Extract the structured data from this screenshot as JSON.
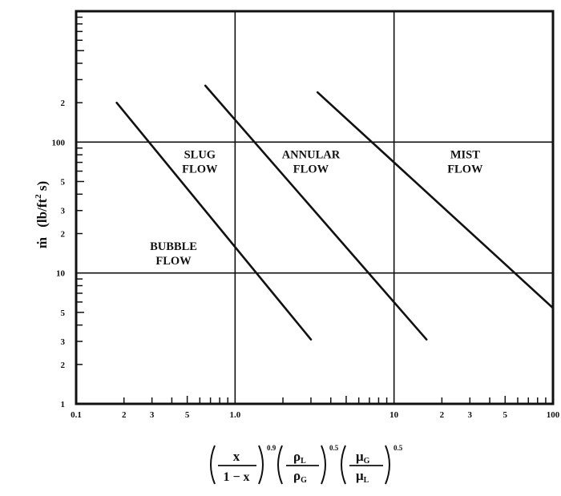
{
  "chart_data": {
    "type": "line",
    "xscale": "log",
    "yscale": "log",
    "xlim": [
      0.1,
      100
    ],
    "ylim": [
      1,
      1000
    ],
    "grid": "major decades only",
    "xticks": {
      "major": [
        {
          "value": 0.1,
          "label": "0.1"
        },
        {
          "value": 1,
          "label": "1.0"
        },
        {
          "value": 10,
          "label": "10"
        },
        {
          "value": 100,
          "label": "100"
        }
      ],
      "minor_labeled": [
        {
          "value": 0.2,
          "label": "2"
        },
        {
          "value": 0.3,
          "label": "3"
        },
        {
          "value": 0.5,
          "label": "5"
        },
        {
          "value": 20,
          "label": "2"
        },
        {
          "value": 30,
          "label": "3"
        },
        {
          "value": 50,
          "label": "5"
        }
      ]
    },
    "yticks": {
      "major": [
        {
          "value": 1,
          "label": "1"
        },
        {
          "value": 10,
          "label": "10"
        },
        {
          "value": 100,
          "label": "100"
        }
      ],
      "minor_labeled": [
        {
          "value": 2,
          "label": "2"
        },
        {
          "value": 3,
          "label": "3"
        },
        {
          "value": 5,
          "label": "5"
        },
        {
          "value": 20,
          "label": "2"
        },
        {
          "value": 30,
          "label": "3"
        },
        {
          "value": 50,
          "label": "5"
        },
        {
          "value": 200,
          "label": "2"
        }
      ]
    },
    "series": [
      {
        "points": [
          [
            0.18,
            200
          ],
          [
            3.0,
            3.1
          ]
        ]
      },
      {
        "points": [
          [
            0.65,
            270
          ],
          [
            16,
            3.1
          ]
        ]
      },
      {
        "points": [
          [
            3.3,
            240
          ],
          [
            100,
            5.4
          ]
        ]
      }
    ],
    "regions": [
      {
        "lines": [
          "SLUG",
          "FLOW"
        ],
        "x": 0.6,
        "y": 75
      },
      {
        "lines": [
          "ANNULAR",
          "FLOW"
        ],
        "x": 3.0,
        "y": 75
      },
      {
        "lines": [
          "MIST",
          "FLOW"
        ],
        "x": 28,
        "y": 75
      },
      {
        "lines": [
          "BUBBLE",
          "FLOW"
        ],
        "x": 0.41,
        "y": 15
      }
    ],
    "ylabel": {
      "symbol": "ṁ",
      "unit_base": "(lb/ft",
      "unit_exp": "2",
      "unit_end": " s)"
    },
    "xlabel": {
      "terms": [
        {
          "num": "x",
          "den": "1 − x",
          "exp": "0.9"
        },
        {
          "num": "ρ",
          "num_sub": "L",
          "den": "ρ",
          "den_sub": "G",
          "exp": "0.5"
        },
        {
          "num": "μ",
          "num_sub": "G",
          "den": "μ",
          "den_sub": "L",
          "exp": "0.5"
        }
      ]
    }
  }
}
